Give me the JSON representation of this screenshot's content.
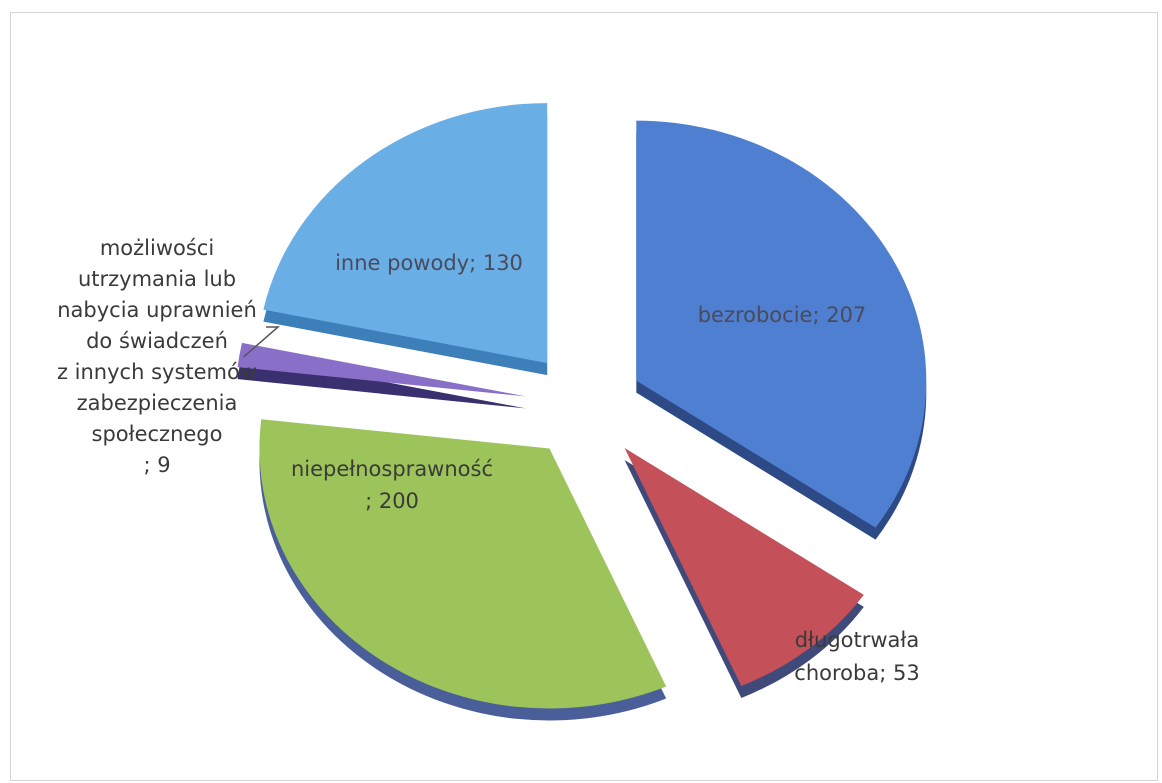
{
  "chart_data": {
    "type": "pie",
    "exploded": true,
    "three_d": true,
    "slices": [
      {
        "name": "bezrobocie",
        "value": 207,
        "color": "#4f7fd0",
        "side": "#2e4a86",
        "label_lines": [
          "bezrobocie; 207"
        ]
      },
      {
        "name": "długotrwała choroba",
        "value": 53,
        "color": "#c4505a",
        "side": "#3f4a7a",
        "label_lines": [
          "długotrwała",
          "choroba; 53"
        ]
      },
      {
        "name": "niepełnosprawność",
        "value": 200,
        "color": "#9cc45a",
        "side": "#4a5e9a",
        "label_lines": [
          "niepełnosprawność",
          "; 200"
        ]
      },
      {
        "name": "możliwości utrzymania lub nabycia uprawnień do świadczeń z innych systemów zabezpieczenia społecznego",
        "value": 9,
        "color": "#8a6fc8",
        "side": "#3a3070",
        "label_lines": [
          "możliwości",
          "utrzymania lub",
          "nabycia uprawnień",
          "do świadczeń",
          "z innych systemów",
          "zabezpieczenia",
          "społecznego",
          "; 9"
        ]
      },
      {
        "name": "inne powody",
        "value": 130,
        "color": "#6aaee6",
        "side": "#3d7fb8",
        "label_lines": [
          "inne powody; 130"
        ]
      }
    ]
  }
}
